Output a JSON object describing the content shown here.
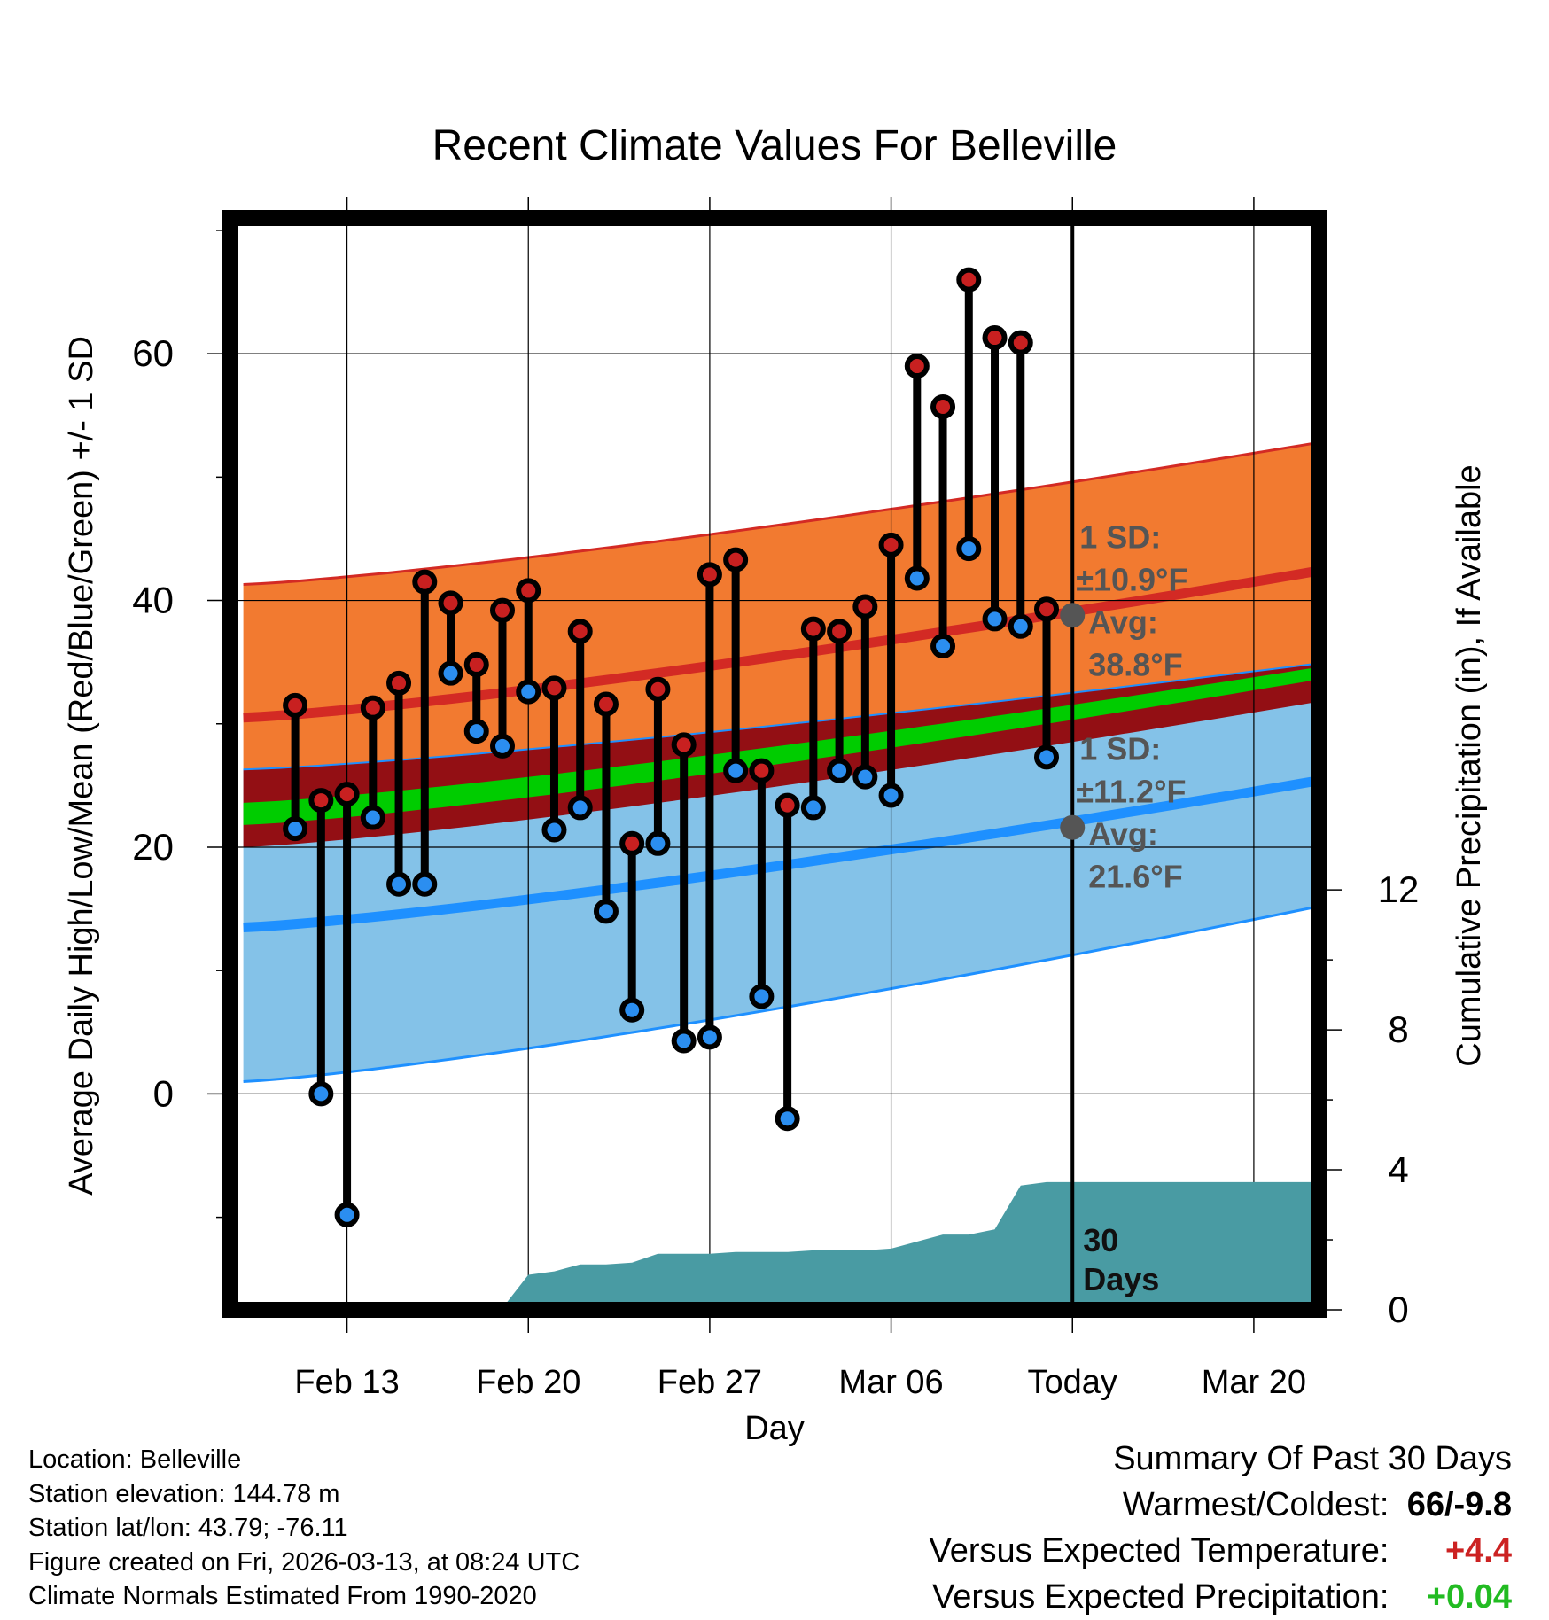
{
  "chart_data": {
    "type": "range",
    "title": "Recent Climate Values For Belleville",
    "xlabel": "Day",
    "ylabel": "Average Daily High/Low/Mean (Red/Blue/Green) +/- 1 SD",
    "y2label": "Cumulative Precipitation (in), If Available",
    "xlim_days": [
      -32.5,
      9.5
    ],
    "ylim": [
      -17.5,
      71
    ],
    "y2lim": [
      0,
      31.2
    ],
    "x_ticks": [
      {
        "label": "Feb 13",
        "day": -28
      },
      {
        "label": "Feb 20",
        "day": -21
      },
      {
        "label": "Feb 27",
        "day": -14
      },
      {
        "label": "Mar 06",
        "day": -7
      },
      {
        "label": "Today",
        "day": 0
      },
      {
        "label": "Mar 20",
        "day": 7
      }
    ],
    "y_ticks": [
      0,
      20,
      40,
      60
    ],
    "y2_ticks": [
      0,
      4,
      8,
      12
    ],
    "normals": {
      "days": [
        -32,
        9.5
      ],
      "high_mean": [
        30.5,
        42.4
      ],
      "high_upper": [
        41.3,
        52.8
      ],
      "mean_lower": [
        21.8,
        33.6
      ],
      "mean_upper": [
        23.6,
        34.6
      ],
      "low_mean": [
        13.5,
        25.4
      ],
      "low_upper": [
        26.3,
        34.9
      ],
      "low_lower": [
        1.0,
        15.2
      ],
      "band_bottom": [
        20.0,
        31.8
      ]
    },
    "daily": {
      "days": [
        -30,
        -29,
        -28,
        -27,
        -26,
        -25,
        -24,
        -23,
        -22,
        -21,
        -20,
        -19,
        -18,
        -17,
        -16,
        -15,
        -14,
        -13,
        -12,
        -11,
        -10,
        -9,
        -8,
        -7,
        -6,
        -5,
        -4,
        -3,
        -2,
        -1
      ],
      "highs": [
        31.5,
        23.8,
        24.3,
        31.3,
        33.3,
        41.5,
        39.8,
        34.8,
        39.2,
        40.8,
        32.9,
        37.5,
        31.6,
        20.3,
        32.8,
        28.3,
        42.1,
        43.3,
        26.2,
        23.4,
        37.7,
        37.5,
        39.5,
        44.5,
        59.0,
        55.7,
        66.0,
        61.3,
        60.9,
        39.3
      ],
      "lows": [
        21.5,
        0.0,
        -9.8,
        22.4,
        17.0,
        17.0,
        34.1,
        29.4,
        28.2,
        32.6,
        21.4,
        23.2,
        14.8,
        6.8,
        20.3,
        4.3,
        4.6,
        26.2,
        7.9,
        -2.0,
        23.2,
        26.2,
        25.7,
        24.2,
        41.8,
        36.3,
        44.2,
        38.5,
        37.9,
        27.3
      ]
    },
    "precip": {
      "days": [
        -32,
        -29,
        -28,
        -27,
        -26,
        -25,
        -24,
        -22,
        -21,
        -20,
        -19,
        -18,
        -17,
        -16,
        -14,
        -13,
        -12,
        -11,
        -10,
        -9,
        -8,
        -7,
        -6,
        -5,
        -4,
        -3,
        -2,
        -1,
        0,
        9.5
      ],
      "cumulative": [
        0,
        0,
        0,
        0,
        0,
        0,
        0.05,
        0.05,
        1.0,
        1.1,
        1.3,
        1.3,
        1.35,
        1.6,
        1.6,
        1.65,
        1.65,
        1.65,
        1.7,
        1.7,
        1.7,
        1.75,
        1.95,
        2.15,
        2.15,
        2.3,
        3.55,
        3.65,
        3.65,
        3.65
      ]
    },
    "high_annotation": {
      "sd": "1 SD:",
      "sd_value": "±10.9°F",
      "avg": "Avg:",
      "avg_value": "38.8°F",
      "value": 38.8
    },
    "low_annotation": {
      "sd": "1 SD:",
      "sd_value": "±11.2°F",
      "avg": "Avg:",
      "avg_value": "21.6°F",
      "value": 21.6
    },
    "today_label": [
      "30",
      "Days"
    ],
    "colors": {
      "high_band": "#f27a30",
      "high_line": "#d32a24",
      "low_band": "#84c2e8",
      "low_line": "#1e90ff",
      "mean_band": "#930f14",
      "mean_line": "#00cc00",
      "precip": "#499ba3",
      "high_dot": "#c82020",
      "low_dot": "#2b8ef0",
      "annotation": "#555555",
      "marker": "#555555"
    }
  },
  "footer": {
    "location": "Location: Belleville",
    "elevation": "Station elevation: 144.78 m",
    "latlon": "Station lat/lon: 43.79; -76.11",
    "created": "Figure created on Fri, 2026-03-13, at 08:24 UTC",
    "normals": "Climate Normals Estimated From 1990-2020"
  },
  "summary": {
    "title": "Summary Of Past 30 Days",
    "warmest_label": "Warmest/Coldest:",
    "warmest_value": "66/-9.8",
    "temp_label": "Versus Expected Temperature:",
    "temp_value": "+4.4",
    "temp_color": "#cc2222",
    "precip_label": "Versus Expected Precipitation:",
    "precip_value": "+0.04",
    "precip_color": "#22bb22"
  }
}
